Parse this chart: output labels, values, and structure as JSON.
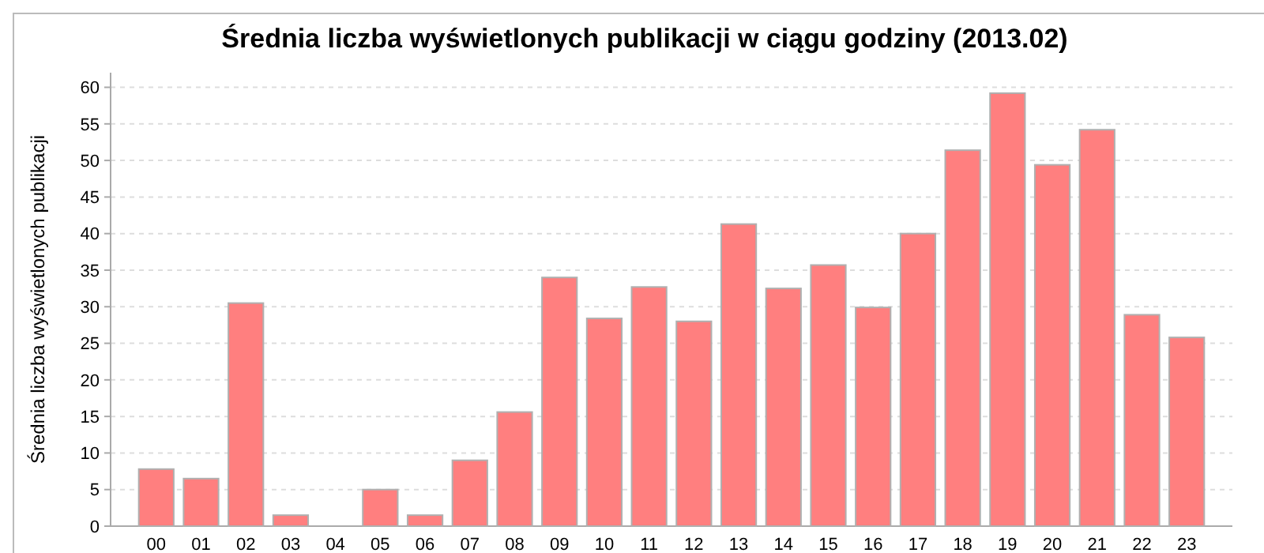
{
  "chart_data": {
    "type": "bar",
    "title": "Średnia liczba wyświetlonych publikacji w ciągu godziny (2013.02)",
    "ylabel": "Średnia liczba wyświetlonych publikacji",
    "categories": [
      "00",
      "01",
      "02",
      "03",
      "04",
      "05",
      "06",
      "07",
      "08",
      "09",
      "10",
      "11",
      "12",
      "13",
      "14",
      "15",
      "16",
      "17",
      "18",
      "19",
      "20",
      "21",
      "22",
      "23"
    ],
    "values": [
      7.8,
      6.5,
      30.5,
      1.5,
      0,
      5,
      1.5,
      9,
      15.6,
      34,
      28.4,
      32.7,
      28,
      41.3,
      32.5,
      35.7,
      29.9,
      40,
      51.4,
      59.2,
      49.4,
      54.2,
      28.9,
      25.8
    ],
    "color": "#ff7f7f",
    "ylim": [
      0,
      62
    ],
    "yticks": [
      0,
      5,
      10,
      15,
      20,
      25,
      30,
      35,
      40,
      45,
      50,
      55,
      60
    ],
    "grid": "y"
  }
}
